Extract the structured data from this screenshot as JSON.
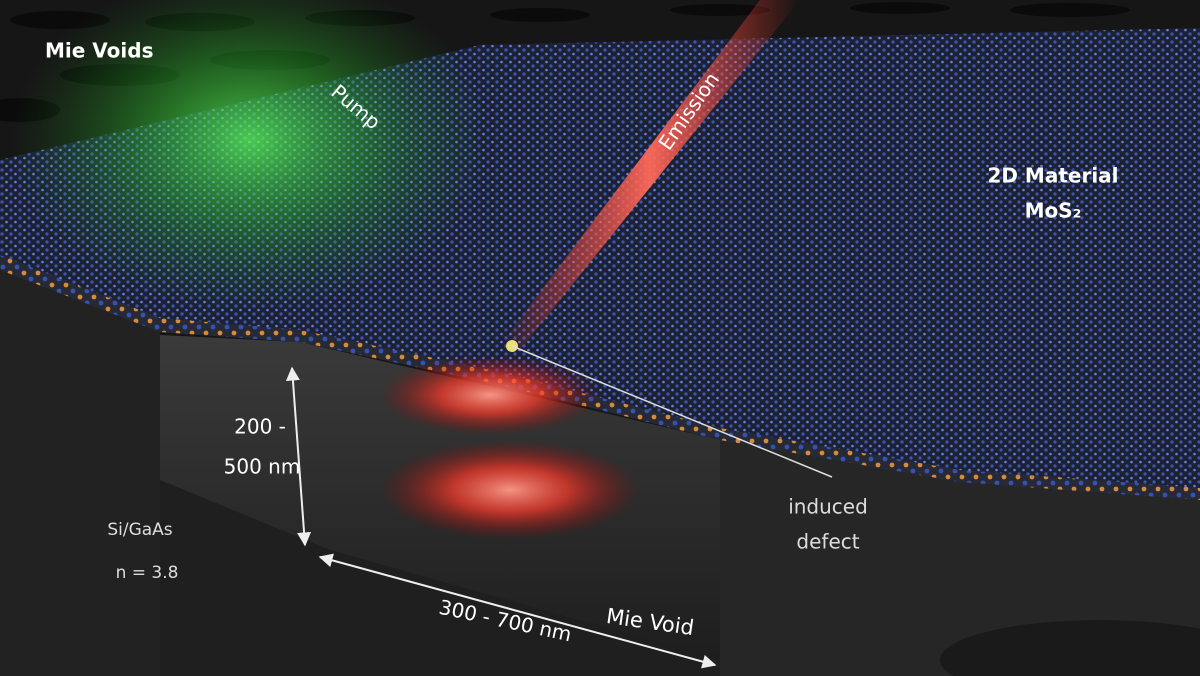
{
  "labels": {
    "mie_voids": "Mie Voids",
    "pump": "Pump",
    "emission": "Emission",
    "material": [
      "2D Material",
      "MoS₂"
    ],
    "depth": [
      "200 -",
      "500 nm"
    ],
    "substrate": [
      "Si/GaAs",
      "n = 3.8"
    ],
    "defect": [
      "induced",
      "defect"
    ],
    "width": "300 - 700 nm",
    "void": "Mie Void"
  }
}
